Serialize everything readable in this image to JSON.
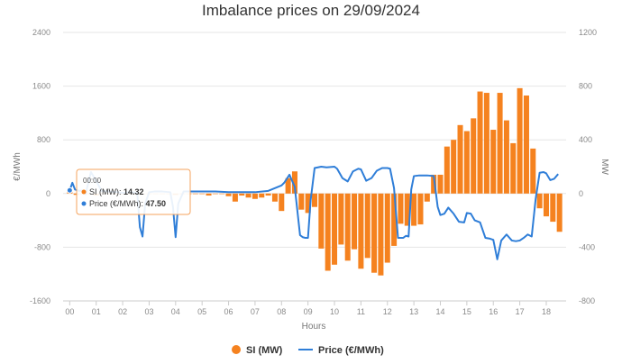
{
  "chart_data": {
    "type": "bar+line",
    "title": "Imbalance prices on 29/09/2024",
    "xlabel": "Hours",
    "ylabel_left": "€/MWh",
    "ylabel_right": "MW",
    "x_ticks": [
      "00",
      "01",
      "02",
      "03",
      "04",
      "05",
      "06",
      "07",
      "08",
      "09",
      "10",
      "11",
      "12",
      "13",
      "14",
      "15",
      "16",
      "17",
      "18"
    ],
    "y_left_ticks": [
      "2400",
      "1600",
      "800",
      "0",
      "-800",
      "-1600"
    ],
    "y_right_ticks": [
      "1200",
      "800",
      "400",
      "0",
      "-400",
      "-800"
    ],
    "ylim_left": [
      -1600,
      2400
    ],
    "ylim_right": [
      -800,
      1200
    ],
    "legend_position": "bottom-center",
    "grid": "horizontal",
    "colors": {
      "si": "#f5821f",
      "price": "#2f7ed8",
      "grid": "#e6e6e6"
    },
    "series": [
      {
        "name": "SI (MW)",
        "axis": "right",
        "type": "bar",
        "x": [
          0.0,
          0.25,
          0.5,
          0.75,
          1.0,
          1.25,
          1.5,
          1.75,
          2.0,
          2.25,
          2.5,
          2.75,
          3.0,
          3.25,
          3.5,
          3.75,
          4.0,
          4.25,
          4.5,
          4.75,
          5.0,
          5.25,
          5.5,
          5.75,
          6.0,
          6.25,
          6.5,
          6.75,
          7.0,
          7.25,
          7.5,
          7.75,
          8.0,
          8.25,
          8.5,
          8.75,
          9.0,
          9.25,
          9.5,
          9.75,
          10.0,
          10.25,
          10.5,
          10.75,
          11.0,
          11.25,
          11.5,
          11.75,
          12.0,
          12.25,
          12.5,
          12.75,
          13.0,
          13.25,
          13.5,
          13.75,
          14.0,
          14.25,
          14.5,
          14.75,
          15.0,
          15.25,
          15.5,
          15.75,
          16.0,
          16.25,
          16.5,
          16.75,
          17.0,
          17.25,
          17.5,
          17.75,
          18.0,
          18.25,
          18.5
        ],
        "values": [
          14.32,
          -10,
          -5,
          0,
          -15,
          0,
          0,
          0,
          0,
          0,
          0,
          0,
          0,
          0,
          0,
          0,
          -10,
          0,
          0,
          0,
          0,
          -15,
          0,
          0,
          -20,
          -60,
          -15,
          -30,
          -40,
          -30,
          -15,
          -60,
          -130,
          115,
          165,
          -120,
          -145,
          -100,
          -410,
          -575,
          -530,
          -380,
          -500,
          -415,
          -560,
          -480,
          -590,
          -610,
          -515,
          -390,
          -225,
          -240,
          -240,
          -230,
          -60,
          140,
          140,
          350,
          400,
          510,
          465,
          560,
          760,
          750,
          475,
          750,
          545,
          375,
          785,
          730,
          335,
          -110,
          -170,
          -210,
          -285
        ],
        "value_label": "14.32"
      },
      {
        "name": "Price (€/MWh)",
        "axis": "left",
        "type": "line",
        "x": [
          0.0,
          0.1,
          0.2,
          0.35,
          0.5,
          0.6,
          0.8,
          1.0,
          1.2,
          1.5,
          1.8,
          2.0,
          2.3,
          2.55,
          2.65,
          2.75,
          2.85,
          3.0,
          3.2,
          3.5,
          3.8,
          3.9,
          4.0,
          4.1,
          4.3,
          4.6,
          5.0,
          5.5,
          6.0,
          6.5,
          7.0,
          7.5,
          8.0,
          8.1,
          8.3,
          8.5,
          8.7,
          8.8,
          8.9,
          9.0,
          9.1,
          9.25,
          9.5,
          9.7,
          10.0,
          10.1,
          10.3,
          10.5,
          10.7,
          10.9,
          11.0,
          11.2,
          11.4,
          11.6,
          11.8,
          12.0,
          12.1,
          12.25,
          12.4,
          12.6,
          12.7,
          12.8,
          12.9,
          13.0,
          13.2,
          13.5,
          13.75,
          13.9,
          14.0,
          14.15,
          14.3,
          14.5,
          14.7,
          14.9,
          15.0,
          15.15,
          15.3,
          15.5,
          15.7,
          15.85,
          16.0,
          16.15,
          16.3,
          16.5,
          16.7,
          16.85,
          17.0,
          17.15,
          17.3,
          17.45,
          17.6,
          17.75,
          17.9,
          18.0,
          18.15,
          18.3,
          18.45
        ],
        "values": [
          47.5,
          160,
          60,
          40,
          45,
          -10,
          320,
          190,
          40,
          30,
          20,
          10,
          20,
          10,
          -500,
          -640,
          -150,
          20,
          30,
          30,
          20,
          -200,
          -650,
          -150,
          30,
          30,
          30,
          30,
          20,
          20,
          20,
          40,
          120,
          160,
          280,
          100,
          -620,
          -650,
          -660,
          -660,
          -100,
          380,
          400,
          390,
          400,
          370,
          230,
          180,
          330,
          370,
          360,
          190,
          230,
          340,
          380,
          380,
          370,
          80,
          -660,
          -660,
          -630,
          -640,
          60,
          260,
          270,
          270,
          260,
          -200,
          -320,
          -300,
          -210,
          -300,
          -420,
          -430,
          -290,
          -300,
          -400,
          -430,
          -660,
          -670,
          -690,
          -980,
          -700,
          -610,
          -700,
          -710,
          -700,
          -660,
          -610,
          -640,
          -80,
          310,
          320,
          300,
          200,
          220,
          290
        ]
      }
    ],
    "tooltip": {
      "time": "00:00",
      "si_label": "SI (MW): ",
      "si_value": "14.32",
      "price_label": "Price (€/MWh): ",
      "price_value": "47.50"
    }
  }
}
